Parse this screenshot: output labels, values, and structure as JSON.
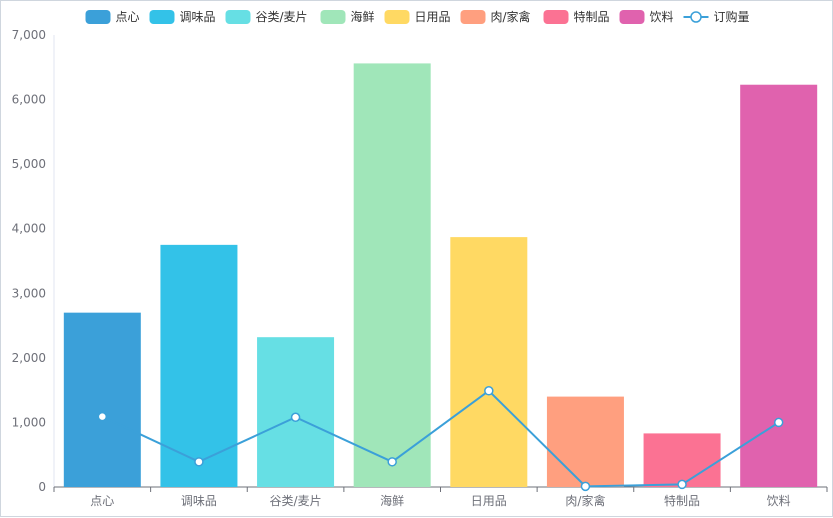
{
  "chart_data": {
    "type": "bar",
    "categories": [
      "点心",
      "调味品",
      "谷类/麦片",
      "海鲜",
      "日用品",
      "肉/家禽",
      "特制品",
      "饮料"
    ],
    "series": [
      {
        "name": "点心",
        "type": "bar",
        "values": [
          2700,
          3750,
          2320,
          6560,
          3870,
          1400,
          830,
          6230
        ]
      },
      {
        "name": "订购量",
        "type": "line",
        "values": [
          1090,
          390,
          1080,
          390,
          1490,
          10,
          40,
          1000
        ]
      }
    ],
    "legend": [
      "点心",
      "调味品",
      "谷类/麦片",
      "海鲜",
      "日用品",
      "肉/家禽",
      "特制品",
      "饮料",
      "订购量"
    ],
    "legend_position": "top-center",
    "bar_colors": [
      "#3ba0d9",
      "#33c2e8",
      "#66dfe4",
      "#a0e6b9",
      "#ffd963",
      "#ff9f7f",
      "#fb7293",
      "#e062ae"
    ],
    "line_color": "#3ba0d9",
    "ylim": [
      0,
      7000
    ],
    "yticks": [
      "0",
      "1,000",
      "2,000",
      "3,000",
      "4,000",
      "5,000",
      "6,000",
      "7,000"
    ],
    "grid": false
  }
}
